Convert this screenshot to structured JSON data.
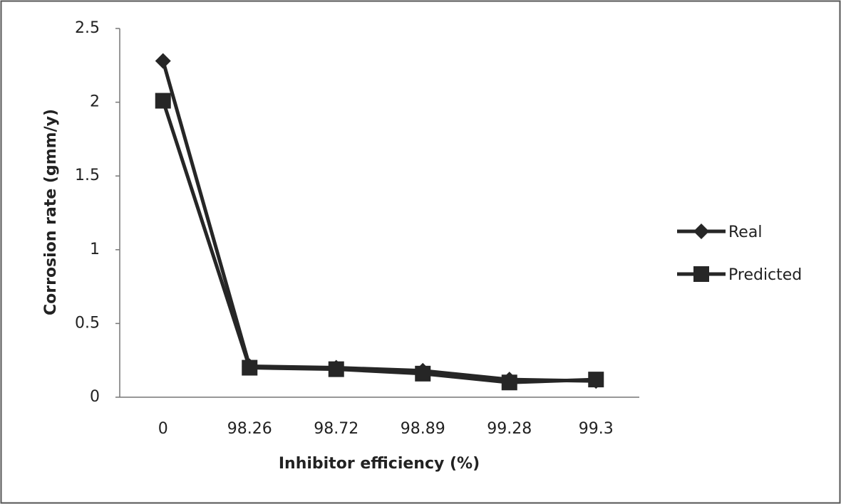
{
  "chart_data": {
    "type": "line",
    "x_label": "Inhibitor efficiency (%)",
    "y_label": "Corrosion rate (gmm/y)",
    "categories": [
      "0",
      "98.26",
      "98.72",
      "98.89",
      "99.28",
      "99.3"
    ],
    "series": [
      {
        "name": "Real",
        "color": "#262626",
        "marker": "diamond",
        "values": [
          2.28,
          0.21,
          0.2,
          0.18,
          0.12,
          0.11
        ]
      },
      {
        "name": "Predicted",
        "color": "#262626",
        "marker": "square",
        "values": [
          2.01,
          0.2,
          0.19,
          0.16,
          0.1,
          0.12
        ]
      }
    ],
    "ylim": [
      0,
      2.5
    ],
    "yticks": [
      0,
      0.5,
      1,
      1.5,
      2,
      2.5
    ],
    "grid": false,
    "legend": "right"
  }
}
